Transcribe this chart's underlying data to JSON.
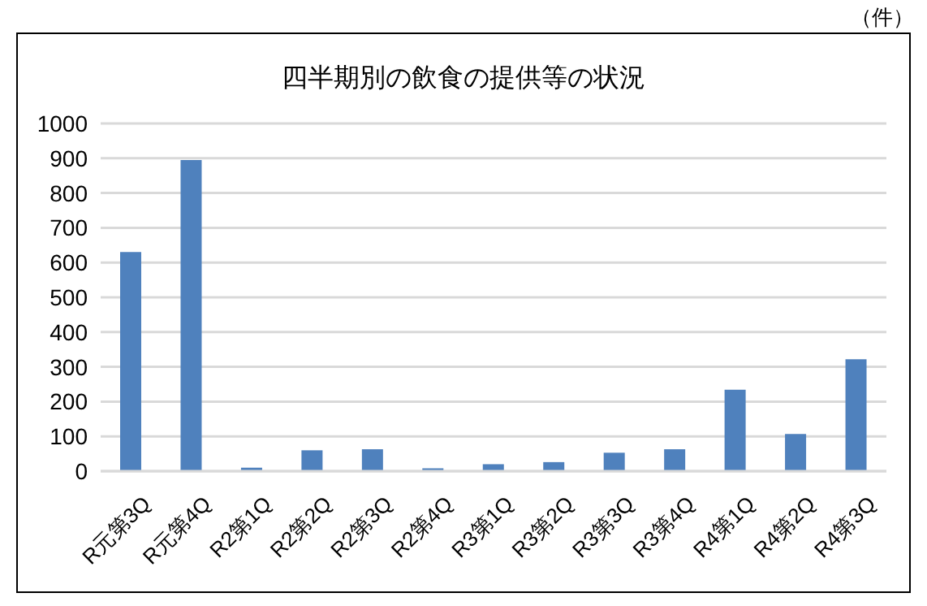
{
  "chart_data": {
    "type": "bar",
    "title": "四半期別の飲食の提供等の状況",
    "ylabel": "（件）",
    "categories": [
      "R元第3Q",
      "R元第4Q",
      "R2第1Q",
      "R2第2Q",
      "R2第3Q",
      "R2第4Q",
      "R3第1Q",
      "R3第2Q",
      "R3第3Q",
      "R3第4Q",
      "R4第1Q",
      "R4第2Q",
      "R4第3Q"
    ],
    "values": [
      630,
      895,
      10,
      60,
      63,
      8,
      20,
      26,
      53,
      63,
      234,
      107,
      322
    ],
    "color": "#4f81bd",
    "ylim": [
      0,
      1000
    ],
    "yticks": [
      0,
      100,
      200,
      300,
      400,
      500,
      600,
      700,
      800,
      900,
      1000
    ],
    "grid": "y"
  }
}
